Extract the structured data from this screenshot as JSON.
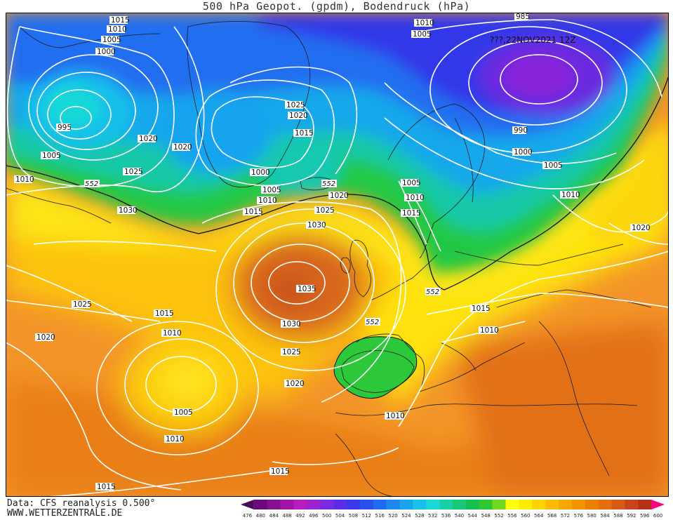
{
  "header": {
    "title": "500 hPa Geopot. (gpdm), Bodendruck (hPa)",
    "valid_time": "???,22NOV2021 12Z"
  },
  "footer": {
    "data_source": "Data: CFS reanalysis 0.500°",
    "website": "WWW.WETTERZENTRALE.DE"
  },
  "scale": {
    "values": [
      "476",
      "480",
      "484",
      "488",
      "492",
      "496",
      "500",
      "504",
      "508",
      "512",
      "516",
      "520",
      "524",
      "528",
      "532",
      "536",
      "540",
      "544",
      "548",
      "552",
      "556",
      "560",
      "564",
      "568",
      "572",
      "576",
      "580",
      "584",
      "588",
      "592",
      "596",
      "600"
    ],
    "colors": [
      "#4b0a5a",
      "#6a0a7a",
      "#86108e",
      "#a014a6",
      "#b81cc0",
      "#9a22d0",
      "#7a2ae0",
      "#5a2ee6",
      "#3a38e8",
      "#2850ec",
      "#206cf0",
      "#1c88f0",
      "#18a4ee",
      "#18c0ea",
      "#18d8d8",
      "#18d0a8",
      "#18c878",
      "#18c050",
      "#30c832",
      "#70d81e",
      "#ffff10",
      "#ffec00",
      "#ffd400",
      "#fcbc00",
      "#f8a800",
      "#f49400",
      "#ee8000",
      "#e66e10",
      "#d85a18",
      "#c84418",
      "#b43018",
      "#ff0080"
    ]
  },
  "contours": {
    "height_label": "552",
    "pressure_labels": [
      {
        "id": "l1",
        "text": "1015"
      },
      {
        "id": "l2",
        "text": "1010"
      },
      {
        "id": "l3",
        "text": "1005"
      },
      {
        "id": "l4",
        "text": "1000"
      },
      {
        "id": "l5",
        "text": "995"
      },
      {
        "id": "l6",
        "text": "1005"
      },
      {
        "id": "l7",
        "text": "1010"
      },
      {
        "id": "l8",
        "text": "1020"
      },
      {
        "id": "l9",
        "text": "1025"
      },
      {
        "id": "l10",
        "text": "1020"
      },
      {
        "id": "l11",
        "text": "1030"
      },
      {
        "id": "l12",
        "text": "1025"
      },
      {
        "id": "l13",
        "text": "1020"
      },
      {
        "id": "l14",
        "text": "1015"
      },
      {
        "id": "l15",
        "text": "1010"
      },
      {
        "id": "l16",
        "text": "1005"
      },
      {
        "id": "l17",
        "text": "1010"
      },
      {
        "id": "l18",
        "text": "1015"
      },
      {
        "id": "l19",
        "text": "1015"
      },
      {
        "id": "l20",
        "text": "1025"
      },
      {
        "id": "l21",
        "text": "1020"
      },
      {
        "id": "l22",
        "text": "1015"
      },
      {
        "id": "l23",
        "text": "1000"
      },
      {
        "id": "l24",
        "text": "1005"
      },
      {
        "id": "l25",
        "text": "1010"
      },
      {
        "id": "l26",
        "text": "1015"
      },
      {
        "id": "l27",
        "text": "1020"
      },
      {
        "id": "l28",
        "text": "1025"
      },
      {
        "id": "l29",
        "text": "1030"
      },
      {
        "id": "l30",
        "text": "1035"
      },
      {
        "id": "l31",
        "text": "1030"
      },
      {
        "id": "l32",
        "text": "1025"
      },
      {
        "id": "l33",
        "text": "1020"
      },
      {
        "id": "l34",
        "text": "1010"
      },
      {
        "id": "l35",
        "text": "1005"
      },
      {
        "id": "l36",
        "text": "1010"
      },
      {
        "id": "l37",
        "text": "1015"
      },
      {
        "id": "l38",
        "text": "985"
      },
      {
        "id": "l39",
        "text": "1010"
      },
      {
        "id": "l40",
        "text": "1005"
      },
      {
        "id": "l41",
        "text": "990"
      },
      {
        "id": "l42",
        "text": "1000"
      },
      {
        "id": "l43",
        "text": "1005"
      },
      {
        "id": "l44",
        "text": "1010"
      },
      {
        "id": "l45",
        "text": "1020"
      },
      {
        "id": "l46",
        "text": "1005"
      },
      {
        "id": "l47",
        "text": "1010"
      },
      {
        "id": "l48",
        "text": "1015"
      },
      {
        "id": "l49",
        "text": "1015"
      },
      {
        "id": "l50",
        "text": "1010"
      },
      {
        "id": "l51",
        "text": "1010"
      }
    ]
  }
}
